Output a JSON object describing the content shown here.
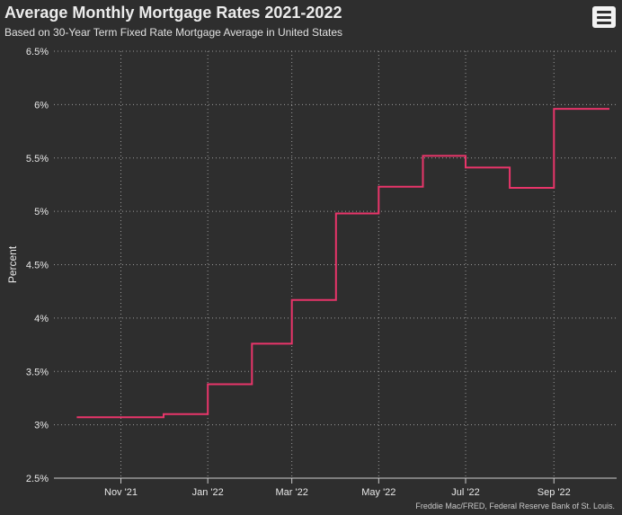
{
  "header": {
    "title": "Average Monthly Mortgage Rates 2021-2022",
    "subtitle": "Based on 30-Year Term Fixed Rate Mortgage Average in United States",
    "menu_icon": "hamburger-menu-icon"
  },
  "credits": "Freddie Mac/FRED, Federal Reserve Bank of St. Louis.",
  "colors": {
    "background": "#2e2e2e",
    "line": "#e8356a",
    "grid": "#9a9a9a",
    "text": "#e8e8e8"
  },
  "chart_data": {
    "type": "line",
    "step": "left",
    "title": "Average Monthly Mortgage Rates 2021-2022",
    "subtitle": "Based on 30-Year Term Fixed Rate Mortgage Average in United States",
    "ylabel": "Percent",
    "xlabel": "",
    "ylim": [
      2.5,
      6.5
    ],
    "yticks": [
      2.5,
      3,
      3.5,
      4,
      4.5,
      5,
      5.5,
      6,
      6.5
    ],
    "ytick_labels": [
      "2.5%",
      "3%",
      "3.5%",
      "4%",
      "4.5%",
      "5%",
      "5.5%",
      "6%",
      "6.5%"
    ],
    "xlim": [
      "2021-09-15",
      "2022-10-15"
    ],
    "xticks": [
      "2021-11-01",
      "2022-01-01",
      "2022-03-01",
      "2022-05-01",
      "2022-07-01",
      "2022-09-01"
    ],
    "xtick_labels": [
      "Nov '21",
      "Jan '22",
      "Mar '22",
      "May '22",
      "Jul '22",
      "Sep '22"
    ],
    "grid": "dotted",
    "legend": "none",
    "series": [
      {
        "x": [
          "2021-10-01",
          "2021-11-01",
          "2021-12-01",
          "2022-01-01",
          "2022-02-01",
          "2022-03-01",
          "2022-04-01",
          "2022-05-01",
          "2022-06-01",
          "2022-07-01",
          "2022-08-01",
          "2022-09-01",
          "2022-10-01"
        ],
        "y": [
          3.07,
          3.07,
          3.1,
          3.38,
          3.76,
          4.17,
          4.98,
          5.23,
          5.52,
          5.41,
          5.22,
          5.96,
          5.96
        ]
      }
    ]
  }
}
